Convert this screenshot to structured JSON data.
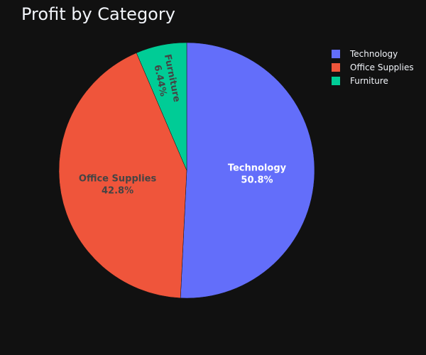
{
  "chart_data": {
    "type": "pie",
    "title": "Profit by Category",
    "categories": [
      "Technology",
      "Office Supplies",
      "Furniture"
    ],
    "values": [
      50.8,
      42.8,
      6.44
    ],
    "slice_labels": [
      "50.8%",
      "42.8%",
      "6.44%"
    ],
    "colors": [
      "#636efa",
      "#ef553b",
      "#00cc96"
    ],
    "label_colors": [
      "#ffffff",
      "#444444",
      "#444444"
    ],
    "legend": {
      "placement": "top-right",
      "items": [
        "Technology",
        "Office Supplies",
        "Furniture"
      ]
    },
    "direction": "clockwise"
  }
}
